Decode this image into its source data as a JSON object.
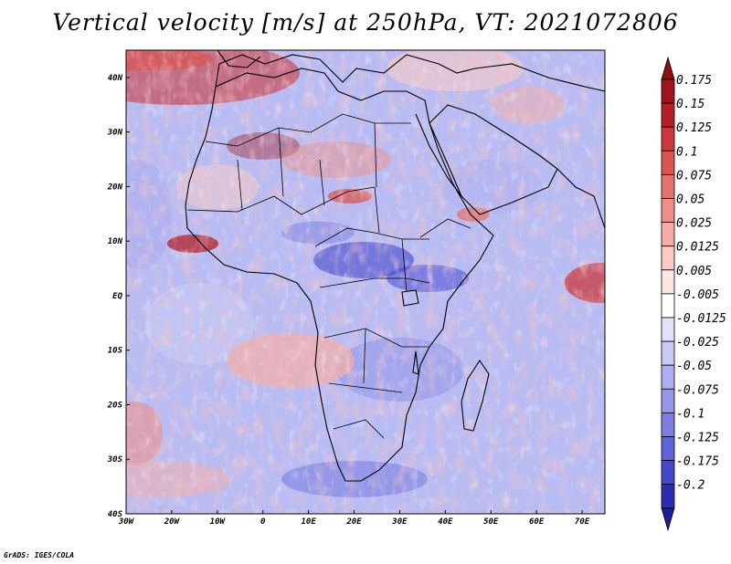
{
  "title": "Vertical velocity [m/s] at 250hPa, VT: 2021072806",
  "credit": "GrADS: IGES/COLA",
  "map": {
    "lon_range": [
      -30,
      75
    ],
    "lat_range": [
      -40,
      45
    ],
    "lon_ticks": [
      {
        "value": -30,
        "label": "30W"
      },
      {
        "value": -20,
        "label": "20W"
      },
      {
        "value": -10,
        "label": "10W"
      },
      {
        "value": 0,
        "label": "0"
      },
      {
        "value": 10,
        "label": "10E"
      },
      {
        "value": 20,
        "label": "20E"
      },
      {
        "value": 30,
        "label": "30E"
      },
      {
        "value": 40,
        "label": "40E"
      },
      {
        "value": 50,
        "label": "50E"
      },
      {
        "value": 60,
        "label": "60E"
      },
      {
        "value": 70,
        "label": "70E"
      }
    ],
    "lat_ticks": [
      {
        "value": 40,
        "label": "40N"
      },
      {
        "value": 30,
        "label": "30N"
      },
      {
        "value": 20,
        "label": "20N"
      },
      {
        "value": 10,
        "label": "10N"
      },
      {
        "value": 0,
        "label": "EQ"
      },
      {
        "value": -10,
        "label": "10S"
      },
      {
        "value": -20,
        "label": "20S"
      },
      {
        "value": -30,
        "label": "30S"
      },
      {
        "value": -40,
        "label": "40S"
      }
    ]
  },
  "colorbar": {
    "levels": [
      {
        "label": "0.175",
        "color": "#a1141c"
      },
      {
        "label": "0.15",
        "color": "#b62025"
      },
      {
        "label": "0.125",
        "color": "#c9383a"
      },
      {
        "label": "0.1",
        "color": "#d85552"
      },
      {
        "label": "0.075",
        "color": "#e4726d"
      },
      {
        "label": "0.05",
        "color": "#ee9089"
      },
      {
        "label": "0.025",
        "color": "#f5aea7"
      },
      {
        "label": "0.0125",
        "color": "#f9cbc4"
      },
      {
        "label": "0.005",
        "color": "#fce6e2"
      },
      {
        "label": "-0.005",
        "color": "#ffffff"
      },
      {
        "label": "-0.0125",
        "color": "#e2e2fb"
      },
      {
        "label": "-0.025",
        "color": "#c8c9f4"
      },
      {
        "label": "-0.05",
        "color": "#aeaff0"
      },
      {
        "label": "-0.075",
        "color": "#9497ea"
      },
      {
        "label": "-0.1",
        "color": "#7b7ee2"
      },
      {
        "label": "-0.125",
        "color": "#6163d8"
      },
      {
        "label": "-0.175",
        "color": "#4647cb"
      },
      {
        "label": "-0.2",
        "color": "#2b2bb6"
      }
    ],
    "top_color": "#8c0f14",
    "bottom_color": "#1e1e9a"
  },
  "colors": {
    "coast": "#000000",
    "bg_blue": "#b9bcf2",
    "bg_red": "#f1b0a8"
  }
}
